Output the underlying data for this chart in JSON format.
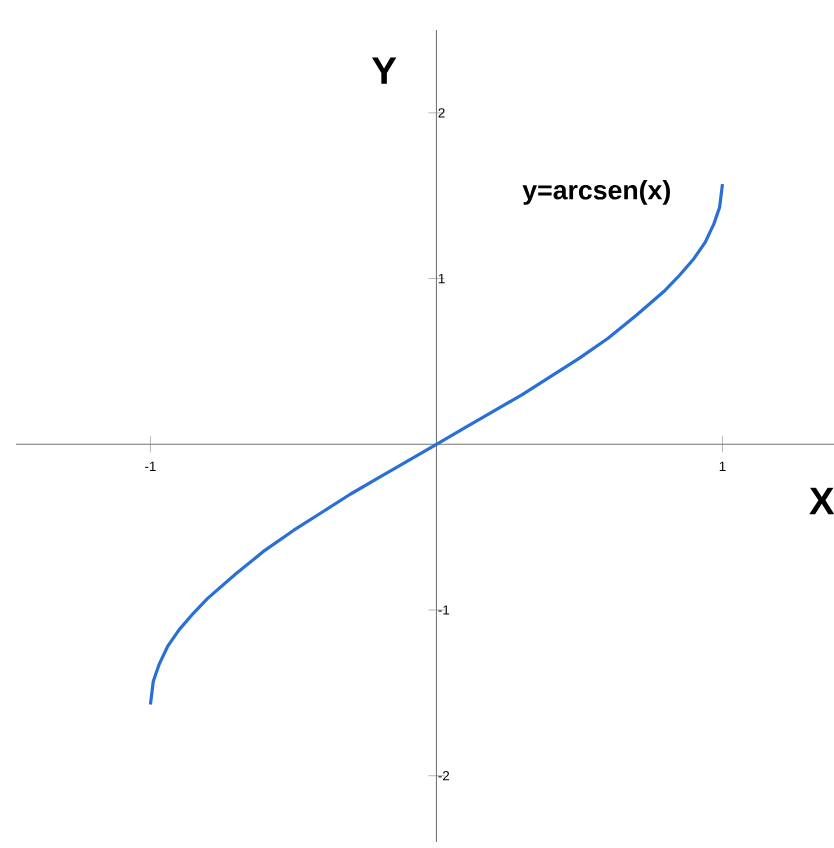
{
  "chart_data": {
    "type": "line",
    "xlabel": "X",
    "ylabel": "Y",
    "annotations": [
      "y=arcsen(x)"
    ],
    "x": [
      -1,
      -0.99,
      -0.97,
      -0.94,
      -0.9,
      -0.85,
      -0.8,
      -0.7,
      -0.6,
      -0.5,
      -0.4,
      -0.3,
      -0.2,
      -0.1,
      0,
      0.1,
      0.2,
      0.3,
      0.4,
      0.5,
      0.6,
      0.7,
      0.8,
      0.85,
      0.9,
      0.94,
      0.97,
      0.99,
      1
    ],
    "series": [
      {
        "color": "#2a6fd6",
        "values": [
          -1.57,
          -1.43,
          -1.33,
          -1.22,
          -1.12,
          -1.02,
          -0.93,
          -0.78,
          -0.64,
          -0.52,
          -0.41,
          -0.3,
          -0.2,
          -0.1,
          0,
          0.1,
          0.2,
          0.3,
          0.41,
          0.52,
          0.64,
          0.78,
          0.93,
          1.02,
          1.12,
          1.22,
          1.33,
          1.43,
          1.57
        ]
      }
    ],
    "xlim": [
      -1.47,
      1.39
    ],
    "ylim": [
      -2.4,
      2.5
    ],
    "xticks": [
      -1,
      1
    ],
    "yticks": [
      -2,
      -1,
      1,
      2
    ],
    "grid": false,
    "legend": false,
    "marker": "none",
    "line_style": "solid"
  }
}
